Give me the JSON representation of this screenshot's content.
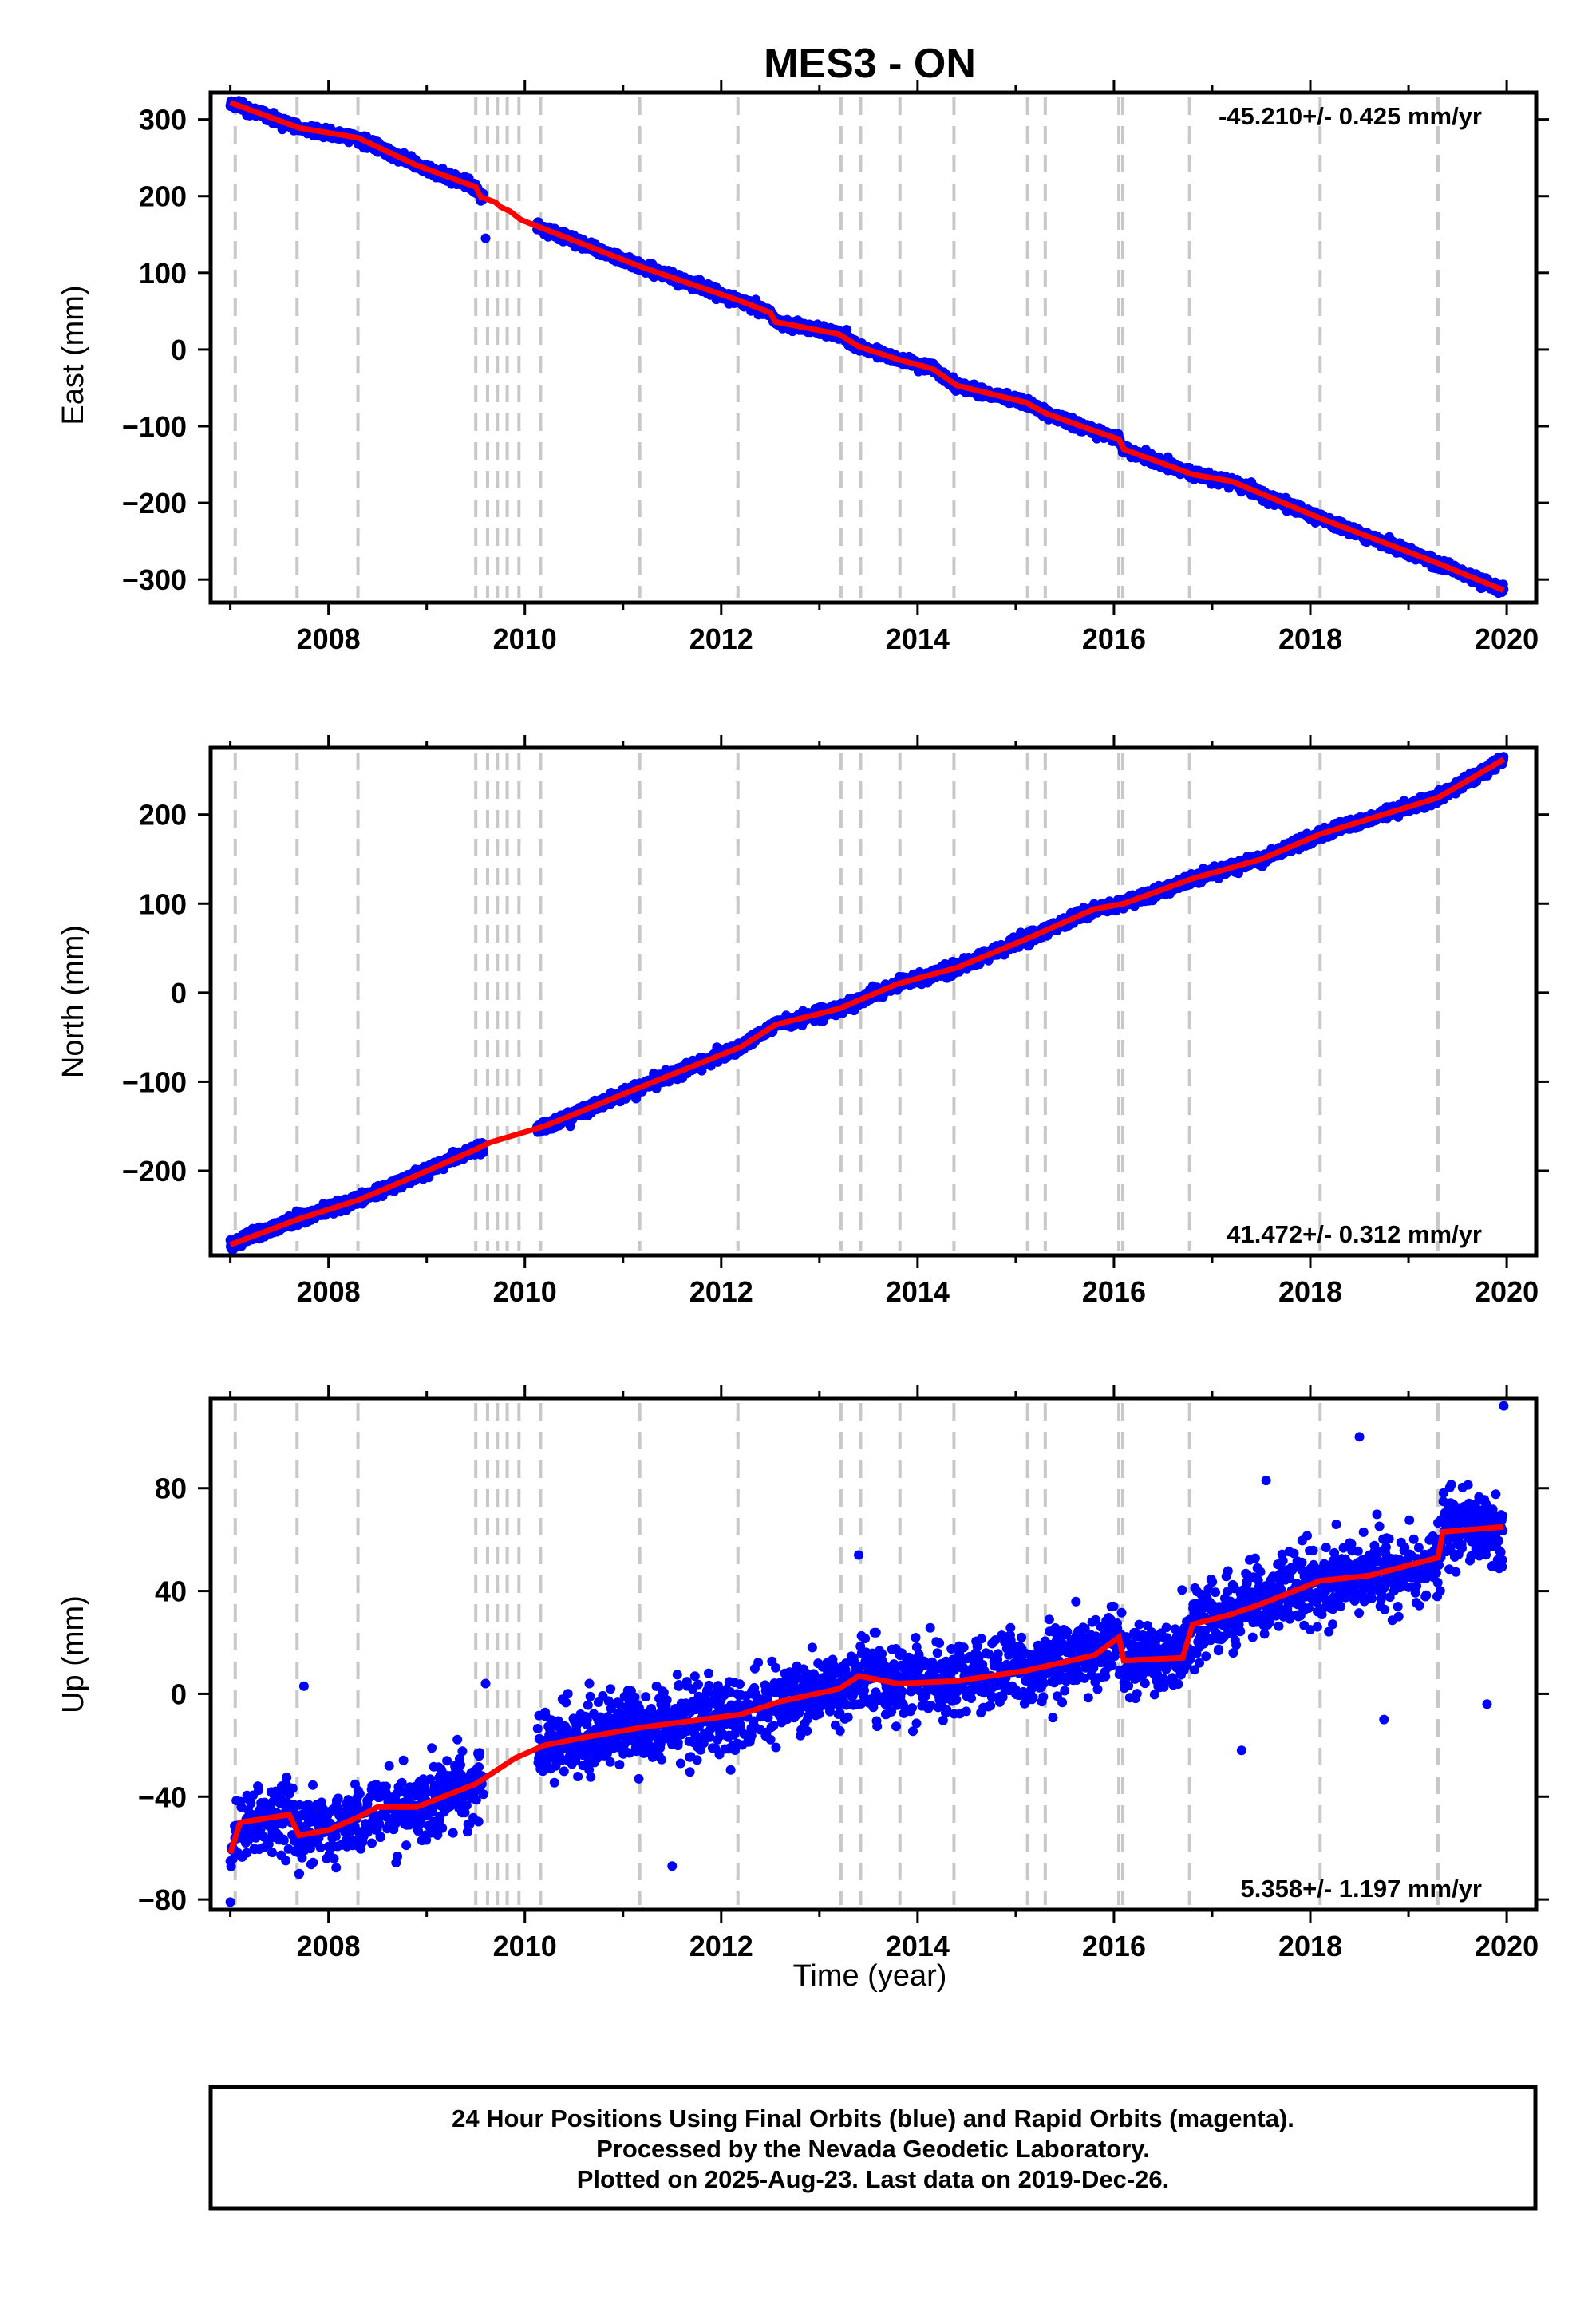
{
  "figure": {
    "title": "MES3 - ON",
    "xlabel": "Time (year)",
    "footer_lines": [
      "24 Hour Positions Using Final Orbits (blue) and Rapid Orbits (magenta).",
      "Processed by the Nevada Geodetic Laboratory.",
      "Plotted on 2025-Aug-23. Last data on 2019-Dec-26."
    ]
  },
  "colors": {
    "data_points": "#0000ff",
    "model_line": "#ff0000",
    "event_lines": "#c8c8c8",
    "frame": "#000000"
  },
  "chart_data": [
    {
      "type": "scatter",
      "name": "east",
      "ylabel": "East (mm)",
      "rate_label": "-45.210+/- 0.425 mm/yr",
      "rate_placement": "top-right",
      "xlim": [
        2006.8,
        2020.3
      ],
      "ylim": [
        -330,
        335
      ],
      "xticks": [
        2008,
        2010,
        2012,
        2014,
        2016,
        2018,
        2020
      ],
      "yticks": [
        300,
        200,
        100,
        0,
        -100,
        -200,
        -300
      ],
      "grid": false,
      "model_points": [
        [
          2007.0,
          322
        ],
        [
          2007.7,
          289
        ],
        [
          2008.3,
          276
        ],
        [
          2008.9,
          240
        ],
        [
          2009.5,
          212
        ],
        [
          2009.55,
          199
        ],
        [
          2009.7,
          192
        ],
        [
          2009.75,
          186
        ],
        [
          2009.85,
          180
        ],
        [
          2009.95,
          170
        ],
        [
          2010.0,
          167
        ],
        [
          2010.2,
          157
        ],
        [
          2011.2,
          107
        ],
        [
          2012.2,
          63
        ],
        [
          2012.5,
          48
        ],
        [
          2012.55,
          36
        ],
        [
          2013.2,
          20
        ],
        [
          2013.4,
          4
        ],
        [
          2013.8,
          -13
        ],
        [
          2014.15,
          -25
        ],
        [
          2014.4,
          -47
        ],
        [
          2015.1,
          -69
        ],
        [
          2015.3,
          -83
        ],
        [
          2015.8,
          -106
        ],
        [
          2016.05,
          -117
        ],
        [
          2016.1,
          -130
        ],
        [
          2016.8,
          -163
        ],
        [
          2017.2,
          -172
        ],
        [
          2018.1,
          -220
        ],
        [
          2019.3,
          -279
        ],
        [
          2019.97,
          -314
        ]
      ],
      "outliers": [
        [
          2009.6,
          145
        ]
      ],
      "scatter_sd": 3
    },
    {
      "type": "scatter",
      "name": "north",
      "ylabel": "North (mm)",
      "rate_label": "41.472+/- 0.312 mm/yr",
      "rate_placement": "bottom-right",
      "xlim": [
        2006.8,
        2020.3
      ],
      "ylim": [
        -295,
        275
      ],
      "xticks": [
        2008,
        2010,
        2012,
        2014,
        2016,
        2018,
        2020
      ],
      "yticks": [
        200,
        100,
        0,
        -100,
        -200
      ],
      "grid": false,
      "model_points": [
        [
          2007.0,
          -283
        ],
        [
          2007.7,
          -254
        ],
        [
          2008.3,
          -233
        ],
        [
          2008.9,
          -205
        ],
        [
          2009.5,
          -176
        ],
        [
          2009.65,
          -168
        ],
        [
          2010.2,
          -150
        ],
        [
          2011.2,
          -105
        ],
        [
          2012.2,
          -61
        ],
        [
          2012.55,
          -36
        ],
        [
          2013.2,
          -18
        ],
        [
          2013.8,
          10
        ],
        [
          2014.4,
          28
        ],
        [
          2015.1,
          60
        ],
        [
          2015.8,
          94
        ],
        [
          2016.1,
          100
        ],
        [
          2016.8,
          128
        ],
        [
          2017.5,
          150
        ],
        [
          2018.1,
          178
        ],
        [
          2019.3,
          219
        ],
        [
          2019.97,
          262
        ]
      ],
      "outliers": [],
      "scatter_sd": 3
    },
    {
      "type": "scatter",
      "name": "up",
      "ylabel": "Up (mm)",
      "rate_label": "5.358+/- 1.197 mm/yr",
      "rate_placement": "bottom-right",
      "xlim": [
        2006.8,
        2020.3
      ],
      "ylim": [
        -84,
        115
      ],
      "xticks": [
        2008,
        2010,
        2012,
        2014,
        2016,
        2018,
        2020
      ],
      "yticks": [
        80,
        40,
        0,
        -40,
        -80
      ],
      "grid": false,
      "model_points": [
        [
          2007.0,
          -62
        ],
        [
          2007.1,
          -50
        ],
        [
          2007.6,
          -47
        ],
        [
          2007.7,
          -55
        ],
        [
          2008.0,
          -53
        ],
        [
          2008.3,
          -48
        ],
        [
          2008.5,
          -44
        ],
        [
          2008.9,
          -44
        ],
        [
          2009.5,
          -35
        ],
        [
          2009.9,
          -25
        ],
        [
          2010.2,
          -20
        ],
        [
          2010.6,
          -17
        ],
        [
          2011.2,
          -13
        ],
        [
          2012.2,
          -8
        ],
        [
          2012.6,
          -3
        ],
        [
          2013.2,
          2
        ],
        [
          2013.4,
          7
        ],
        [
          2013.8,
          4
        ],
        [
          2014.4,
          5
        ],
        [
          2015.1,
          9
        ],
        [
          2015.8,
          15
        ],
        [
          2016.05,
          22
        ],
        [
          2016.1,
          13
        ],
        [
          2016.7,
          14
        ],
        [
          2016.8,
          27
        ],
        [
          2017.2,
          31
        ],
        [
          2017.5,
          35
        ],
        [
          2018.1,
          44
        ],
        [
          2018.6,
          46
        ],
        [
          2019.3,
          53
        ],
        [
          2019.35,
          63
        ],
        [
          2019.97,
          65
        ]
      ],
      "outliers": [
        [
          2019.97,
          112
        ],
        [
          2018.5,
          100
        ],
        [
          2017.55,
          83
        ],
        [
          2019.8,
          -4
        ],
        [
          2018.75,
          -10
        ],
        [
          2017.3,
          -22
        ],
        [
          2011.5,
          -67
        ],
        [
          2013.4,
          54
        ],
        [
          2007.0,
          -81
        ],
        [
          2007.75,
          3
        ],
        [
          2009.6,
          4
        ]
      ],
      "scatter_sd": 7
    }
  ],
  "event_years": [
    2007.05,
    2007.68,
    2008.3,
    2009.5,
    2009.62,
    2009.72,
    2009.82,
    2009.94,
    2010.16,
    2011.17,
    2012.17,
    2013.22,
    2013.42,
    2013.82,
    2014.37,
    2015.12,
    2015.3,
    2016.05,
    2016.09,
    2016.77,
    2018.1,
    2019.3
  ]
}
